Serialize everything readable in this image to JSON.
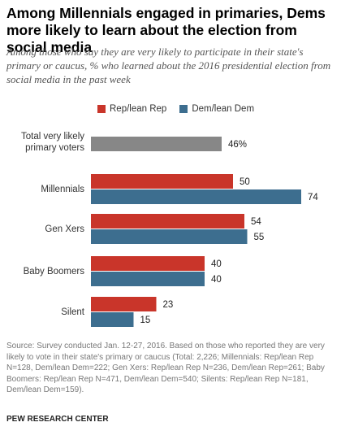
{
  "title": "Among Millennials engaged in primaries, Dems more likely to learn about the election from social media",
  "subtitle": "Among those who say they are very likely to participate in their state's primary or caucus, % who learned about the 2016 presidential election from social media in the past week",
  "colors": {
    "rep": "#c9352a",
    "dem": "#3d6e8f",
    "total": "#878787"
  },
  "legend": [
    {
      "label": "Rep/lean Rep",
      "color": "#c9352a"
    },
    {
      "label": "Dem/lean Dem",
      "color": "#3d6e8f"
    }
  ],
  "chart_data": {
    "type": "bar",
    "orientation": "horizontal",
    "title": "Among Millennials engaged in primaries, Dems more likely to learn about the election from social media",
    "categories": [
      "Total very likely primary voters",
      "Millennials",
      "Gen Xers",
      "Baby Boomers",
      "Silent"
    ],
    "total": {
      "category": "Total very likely primary voters",
      "value": 46,
      "label": "46%"
    },
    "series": [
      {
        "name": "Rep/lean Rep",
        "values": [
          null,
          50,
          54,
          40,
          23
        ]
      },
      {
        "name": "Dem/lean Dem",
        "values": [
          null,
          74,
          55,
          40,
          15
        ]
      }
    ],
    "xlim": [
      0,
      100
    ],
    "grid": false,
    "legend_position": "top"
  },
  "footer": "Source: Survey conducted Jan. 12-27, 2016. Based on those who reported they are very likely to vote in their state's primary or caucus (Total: 2,226; Millennials: Rep/lean Rep N=128, Dem/lean Dem=222; Gen Xers: Rep/lean Rep N=236, Dem/lean Rep=261; Baby Boomers: Rep/lean Rep N=471, Dem/lean Dem=540; Silents: Rep/lean Rep N=181, Dem/lean Dem=159).",
  "credit": "PEW RESEARCH CENTER"
}
